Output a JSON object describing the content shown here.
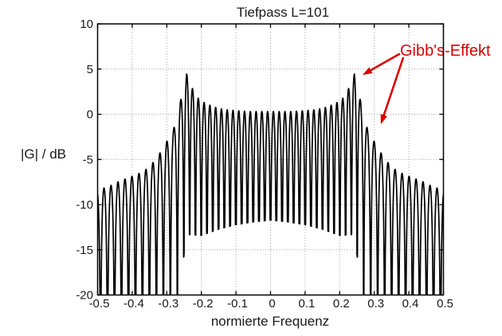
{
  "figure": {
    "background": "#ffffff"
  },
  "chart_data": {
    "type": "line",
    "title": "Tiefpass L=101",
    "xlabel": "normierte Frequenz",
    "ylabel": "|G| / dB",
    "xlim": [
      -0.5,
      0.5
    ],
    "ylim": [
      -20,
      10
    ],
    "grid": true,
    "xticks": [
      {
        "value": -0.5,
        "label": "-0.5"
      },
      {
        "value": -0.4,
        "label": "-0.4"
      },
      {
        "value": -0.3,
        "label": "-0.3"
      },
      {
        "value": -0.2,
        "label": "-0.2"
      },
      {
        "value": -0.1,
        "label": "-0.1"
      },
      {
        "value": 0,
        "label": "0"
      },
      {
        "value": 0.1,
        "label": "0.1"
      },
      {
        "value": 0.2,
        "label": "0.2"
      },
      {
        "value": 0.3,
        "label": "0.3"
      },
      {
        "value": 0.4,
        "label": "0.4"
      },
      {
        "value": 0.5,
        "label": "0.5"
      }
    ],
    "yticks": [
      {
        "value": 10,
        "label": "10"
      },
      {
        "value": 5,
        "label": "5"
      },
      {
        "value": 0,
        "label": "0"
      },
      {
        "value": -5,
        "label": "-5"
      },
      {
        "value": -10,
        "label": "-10"
      },
      {
        "value": -15,
        "label": "-15"
      },
      {
        "value": -20,
        "label": "-20"
      }
    ],
    "colors": {
      "curve": "#000000",
      "grid": "#999999",
      "axis": "#000000",
      "text": "#1a1a1a",
      "annotation": "#dd0000"
    },
    "curve_model": {
      "description": "Magnitude response in dB of truncated ideal lowpass (L=101), symmetric about f=0; oscillating lobes whose peaks follow peak_envelope_dB and whose valleys bottom at valley_floor_dB; null at f=0.",
      "symmetric": true,
      "cutoff": 0.25,
      "overshoot_peak_dB": 4.45,
      "overshoot_peak_x": 0.2425,
      "lobe_period_passband": 0.0167,
      "lobe_period_stopband": 0.0202,
      "period_blend_range": [
        0.245,
        0.27
      ],
      "peak_envelope_dB": [
        [
          0.0,
          0.3
        ],
        [
          0.06,
          0.3
        ],
        [
          0.1,
          0.4
        ],
        [
          0.13,
          0.5
        ],
        [
          0.15,
          0.65
        ],
        [
          0.17,
          0.9
        ],
        [
          0.19,
          1.25
        ],
        [
          0.205,
          1.6
        ],
        [
          0.22,
          2.3
        ],
        [
          0.2425,
          4.45
        ],
        [
          0.262,
          1.2
        ],
        [
          0.282,
          -1.9
        ],
        [
          0.303,
          -3.2
        ],
        [
          0.323,
          -4.5
        ],
        [
          0.343,
          -5.5
        ],
        [
          0.363,
          -6.2
        ],
        [
          0.383,
          -6.6
        ],
        [
          0.403,
          -6.9
        ],
        [
          0.423,
          -7.2
        ],
        [
          0.443,
          -7.5
        ],
        [
          0.463,
          -7.9
        ],
        [
          0.484,
          -8.2
        ],
        [
          0.5,
          -8.5
        ]
      ],
      "valley_floor_dB": [
        [
          0.0,
          -11.7
        ],
        [
          0.05,
          -11.9
        ],
        [
          0.1,
          -12.2
        ],
        [
          0.15,
          -12.7
        ],
        [
          0.2,
          -13.4
        ],
        [
          0.235,
          -13.3
        ],
        [
          0.25,
          -15.5
        ],
        [
          0.262,
          -19.0
        ],
        [
          0.272,
          -26.0
        ],
        [
          0.5,
          -26.0
        ]
      ]
    },
    "annotation": {
      "text": "Gibb's-Effekt",
      "color": "#dd0000",
      "arrows": [
        {
          "from": {
            "x": 0.374,
            "y": 6.7
          },
          "to": {
            "x": 0.266,
            "y": 4.35
          }
        },
        {
          "from": {
            "x": 0.384,
            "y": 6.3
          },
          "to": {
            "x": 0.319,
            "y": -1.1
          }
        }
      ]
    }
  }
}
